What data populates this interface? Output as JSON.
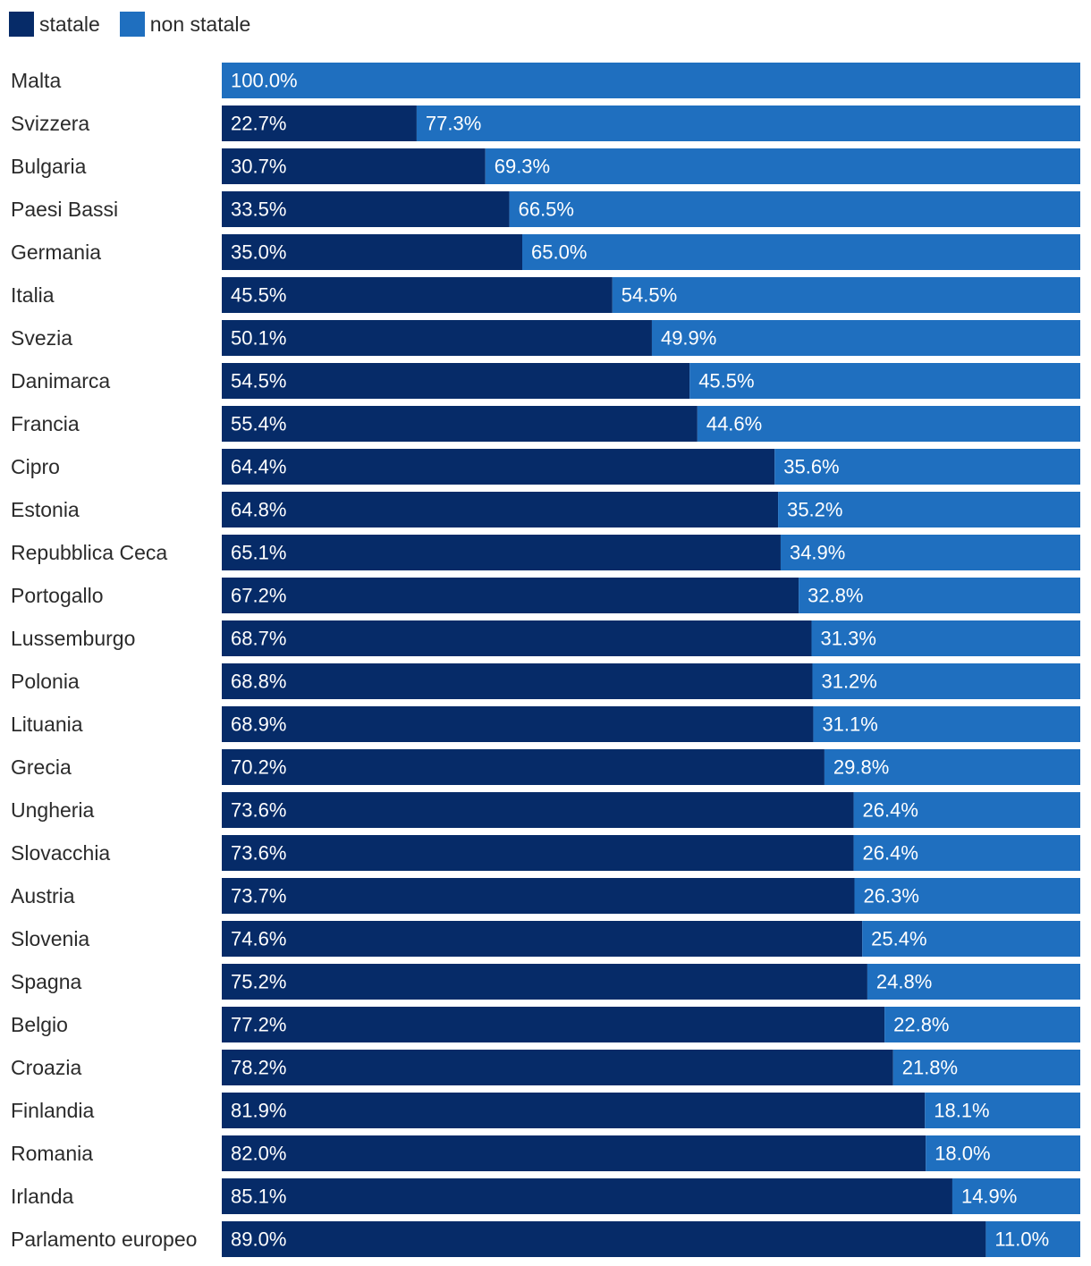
{
  "colors": {
    "statale": "#062b68",
    "non_statale": "#1f6fbf"
  },
  "legend": [
    {
      "key": "statale",
      "label": "statale"
    },
    {
      "key": "non_statale",
      "label": "non statale"
    }
  ],
  "chart_data": {
    "type": "bar",
    "orientation": "horizontal",
    "stacked": "percent",
    "title": "",
    "xlabel": "",
    "ylabel": "",
    "xlim": [
      0,
      100
    ],
    "legend_position": "top-left",
    "grid": false,
    "categories": [
      "Malta",
      "Svizzera",
      "Bulgaria",
      "Paesi Bassi",
      "Germania",
      "Italia",
      "Svezia",
      "Danimarca",
      "Francia",
      "Cipro",
      "Estonia",
      "Repubblica Ceca",
      "Portogallo",
      "Lussemburgo",
      "Polonia",
      "Lituania",
      "Grecia",
      "Ungheria",
      "Slovacchia",
      "Austria",
      "Slovenia",
      "Spagna",
      "Belgio",
      "Croazia",
      "Finlandia",
      "Romania",
      "Irlanda",
      "Parlamento europeo"
    ],
    "series": [
      {
        "name": "statale",
        "values": [
          0,
          22.7,
          30.7,
          33.5,
          35.0,
          45.5,
          50.1,
          54.5,
          55.4,
          64.4,
          64.8,
          65.1,
          67.2,
          68.7,
          68.8,
          68.9,
          70.2,
          73.6,
          73.6,
          73.7,
          74.6,
          75.2,
          77.2,
          78.2,
          81.9,
          82.0,
          85.1,
          89.0
        ],
        "labels": [
          "",
          "22.7%",
          "30.7%",
          "33.5%",
          "35.0%",
          "45.5%",
          "50.1%",
          "54.5%",
          "55.4%",
          "64.4%",
          "64.8%",
          "65.1%",
          "67.2%",
          "68.7%",
          "68.8%",
          "68.9%",
          "70.2%",
          "73.6%",
          "73.6%",
          "73.7%",
          "74.6%",
          "75.2%",
          "77.2%",
          "78.2%",
          "81.9%",
          "82.0%",
          "85.1%",
          "89.0%"
        ]
      },
      {
        "name": "non statale",
        "values": [
          100.0,
          77.3,
          69.3,
          66.5,
          65.0,
          54.5,
          49.9,
          45.5,
          44.6,
          35.6,
          35.2,
          34.9,
          32.8,
          31.3,
          31.2,
          31.1,
          29.8,
          26.4,
          26.4,
          26.3,
          25.4,
          24.8,
          22.8,
          21.8,
          18.1,
          18.0,
          14.9,
          11.0
        ],
        "labels": [
          "100.0%",
          "77.3%",
          "69.3%",
          "66.5%",
          "65.0%",
          "54.5%",
          "49.9%",
          "45.5%",
          "44.6%",
          "35.6%",
          "35.2%",
          "34.9%",
          "32.8%",
          "31.3%",
          "31.2%",
          "31.1%",
          "29.8%",
          "26.4%",
          "26.4%",
          "26.3%",
          "25.4%",
          "24.8%",
          "22.8%",
          "21.8%",
          "18.1%",
          "18.0%",
          "14.9%",
          "11.0%"
        ]
      }
    ]
  }
}
